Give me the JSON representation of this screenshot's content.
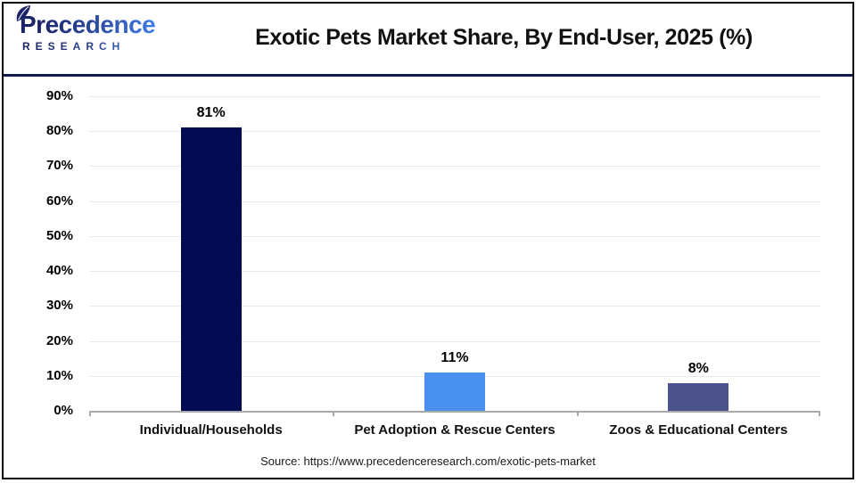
{
  "logo": {
    "word": "Precedence",
    "sub": "RESEARCH"
  },
  "header": {
    "title": "Exotic Pets Market Share, By End-User, 2025 (%)"
  },
  "footer": {
    "source": "Source: https://www.precedenceresearch.com/exotic-pets-market"
  },
  "colors": {
    "header_rule": "#121a4d",
    "grid": "#e9e9e9",
    "axis": "#a9a9a9",
    "logo_navy": "#1b2468",
    "logo_blue": "#3f7ce8",
    "bar_navy": "#030b52",
    "bar_blue": "#4a90ee",
    "bar_slate": "#4c528b"
  },
  "chart_data": {
    "type": "bar",
    "title": "Exotic Pets Market Share, By End-User, 2025 (%)",
    "categories": [
      "Individual/Households",
      "Pet Adoption & Rescue Centers",
      "Zoos & Educational Centers"
    ],
    "values": [
      81,
      11,
      8
    ],
    "value_labels": [
      "81%",
      "11%",
      "8%"
    ],
    "bar_colors": [
      "#030b52",
      "#4a90ee",
      "#4c528b"
    ],
    "xlabel": "",
    "ylabel": "",
    "ylim": [
      0,
      90
    ],
    "ytick_step": 10,
    "ytick_labels": [
      "0%",
      "10%",
      "20%",
      "30%",
      "40%",
      "50%",
      "60%",
      "70%",
      "80%",
      "90%"
    ],
    "grid": true,
    "legend_position": "none",
    "source": "Source: https://www.precedenceresearch.com/exotic-pets-market"
  }
}
